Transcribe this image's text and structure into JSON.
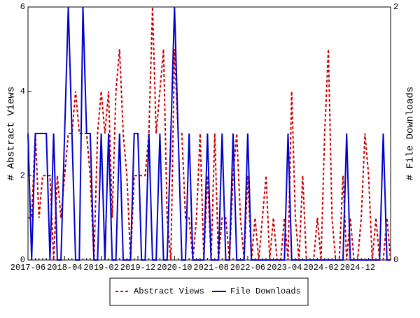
{
  "chart_data": {
    "type": "line",
    "categories": [
      "2017-06",
      null,
      null,
      null,
      null,
      null,
      null,
      null,
      null,
      null,
      "2018-04",
      null,
      null,
      null,
      null,
      null,
      null,
      null,
      null,
      null,
      "2019-02",
      null,
      null,
      null,
      null,
      null,
      null,
      null,
      null,
      null,
      "2019-12",
      null,
      null,
      null,
      null,
      null,
      null,
      null,
      null,
      null,
      "2020-10",
      null,
      null,
      null,
      null,
      null,
      null,
      null,
      null,
      null,
      "2021-08",
      null,
      null,
      null,
      null,
      null,
      null,
      null,
      null,
      null,
      "2022-06",
      null,
      null,
      null,
      null,
      null,
      null,
      null,
      null,
      null,
      "2023-04",
      null,
      null,
      null,
      null,
      null,
      null,
      null,
      null,
      null,
      "2024-02",
      null,
      null,
      null,
      null,
      null,
      null,
      null,
      null,
      null,
      "2024-12",
      null,
      null,
      null,
      null,
      null,
      null,
      null,
      null,
      null
    ],
    "ylabel": "# Abstract Views",
    "y2label": "# File Downloads",
    "ylim": [
      0,
      6
    ],
    "yticks": [
      0,
      2,
      4,
      6
    ],
    "y2lim": [
      0,
      2
    ],
    "y2ticks": [
      0,
      2
    ],
    "legend": "bottom",
    "series": [
      {
        "name": "Abstract Views",
        "color": "#cc0000",
        "dash": true,
        "values": [
          1,
          1,
          3,
          1,
          2,
          2,
          2,
          0,
          2,
          1,
          2,
          3,
          3,
          4,
          3,
          3,
          3,
          2,
          0,
          3,
          4,
          3,
          4,
          1,
          4,
          5,
          3,
          2,
          0,
          2,
          2,
          2,
          2,
          3,
          6,
          3,
          4,
          5,
          1,
          0,
          5,
          3,
          3,
          1,
          1,
          0,
          1,
          3,
          0,
          2,
          0,
          3,
          0,
          1,
          1,
          0,
          2,
          3,
          1,
          0,
          2,
          0,
          1,
          0,
          1,
          2,
          0,
          1,
          0,
          0,
          1,
          0,
          4,
          1,
          0,
          2,
          0,
          0,
          0,
          1,
          0,
          3,
          5,
          1,
          0,
          0,
          2,
          0,
          1,
          0,
          0,
          1,
          3,
          2,
          0,
          1,
          0,
          0,
          1,
          0
        ]
      },
      {
        "name": "File Downloads",
        "color": "#0000cc",
        "dash": false,
        "axis": "y2",
        "values": [
          1,
          0,
          1,
          1,
          1,
          1,
          0,
          1,
          0,
          0,
          1,
          2,
          1,
          0,
          0,
          2,
          1,
          1,
          0,
          0,
          1,
          0,
          1,
          0,
          0,
          1,
          0,
          0,
          0,
          1,
          1,
          0,
          0,
          1,
          0,
          0,
          1,
          0,
          0,
          1,
          2,
          1,
          0,
          0,
          1,
          0,
          0,
          0,
          0,
          1,
          0,
          0,
          0,
          1,
          0,
          0,
          1,
          0,
          0,
          0,
          1,
          0,
          0,
          0,
          0,
          0,
          0,
          0,
          0,
          0,
          0,
          1,
          0,
          0,
          0,
          0,
          0,
          0,
          0,
          0,
          0,
          0,
          0,
          0,
          0,
          0,
          0,
          1,
          0,
          0,
          0,
          0,
          0,
          0,
          0,
          0,
          0,
          1,
          0,
          0
        ]
      }
    ]
  }
}
